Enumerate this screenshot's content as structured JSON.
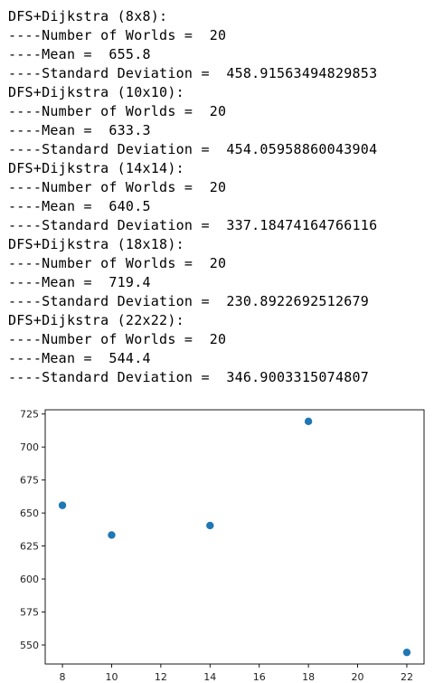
{
  "output": {
    "blocks": [
      {
        "header": "DFS+Dijkstra (8x8):",
        "worlds_label": "----Number of Worlds = ",
        "worlds": "20",
        "mean_label": "----Mean = ",
        "mean": "655.8",
        "std_label": "----Standard Deviation = ",
        "std": "458.91563494829853"
      },
      {
        "header": "DFS+Dijkstra (10x10):",
        "worlds_label": "----Number of Worlds = ",
        "worlds": "20",
        "mean_label": "----Mean = ",
        "mean": "633.3",
        "std_label": "----Standard Deviation = ",
        "std": "454.05958860043904"
      },
      {
        "header": "DFS+Dijkstra (14x14):",
        "worlds_label": "----Number of Worlds = ",
        "worlds": "20",
        "mean_label": "----Mean = ",
        "mean": "640.5",
        "std_label": "----Standard Deviation = ",
        "std": "337.18474164766116"
      },
      {
        "header": "DFS+Dijkstra (18x18):",
        "worlds_label": "----Number of Worlds = ",
        "worlds": "20",
        "mean_label": "----Mean = ",
        "mean": "719.4",
        "std_label": "----Standard Deviation = ",
        "std": "230.8922692512679"
      },
      {
        "header": "DFS+Dijkstra (22x22):",
        "worlds_label": "----Number of Worlds = ",
        "worlds": "20",
        "mean_label": "----Mean = ",
        "mean": "544.4",
        "std_label": "----Standard Deviation = ",
        "std": "346.9003315074807"
      }
    ]
  },
  "chart_data": {
    "type": "scatter",
    "x": [
      8,
      10,
      14,
      18,
      22
    ],
    "y": [
      655.8,
      633.3,
      640.5,
      719.4,
      544.4
    ],
    "xticks": [
      8,
      10,
      12,
      14,
      16,
      18,
      20,
      22
    ],
    "yticks": [
      550,
      575,
      600,
      625,
      650,
      675,
      700,
      725
    ],
    "xlim": [
      7.3,
      22.7
    ],
    "ylim": [
      535.6,
      728.2
    ],
    "marker_color": "#1f77b4",
    "grid": false,
    "title": "",
    "xlabel": "",
    "ylabel": ""
  }
}
